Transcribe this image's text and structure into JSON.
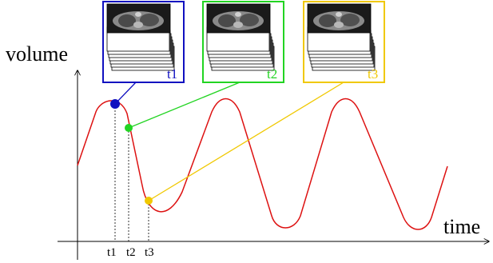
{
  "axes": {
    "y_label": "volume",
    "x_label": "time"
  },
  "ticks": [
    {
      "label": "t1"
    },
    {
      "label": "t2"
    },
    {
      "label": "t3"
    }
  ],
  "frames": [
    {
      "label": "t1",
      "color": "#1010c0"
    },
    {
      "label": "t2",
      "color": "#22d422"
    },
    {
      "label": "t3",
      "color": "#f0c800"
    }
  ],
  "colors": {
    "curve": "#dd1111",
    "axis": "#000000"
  }
}
